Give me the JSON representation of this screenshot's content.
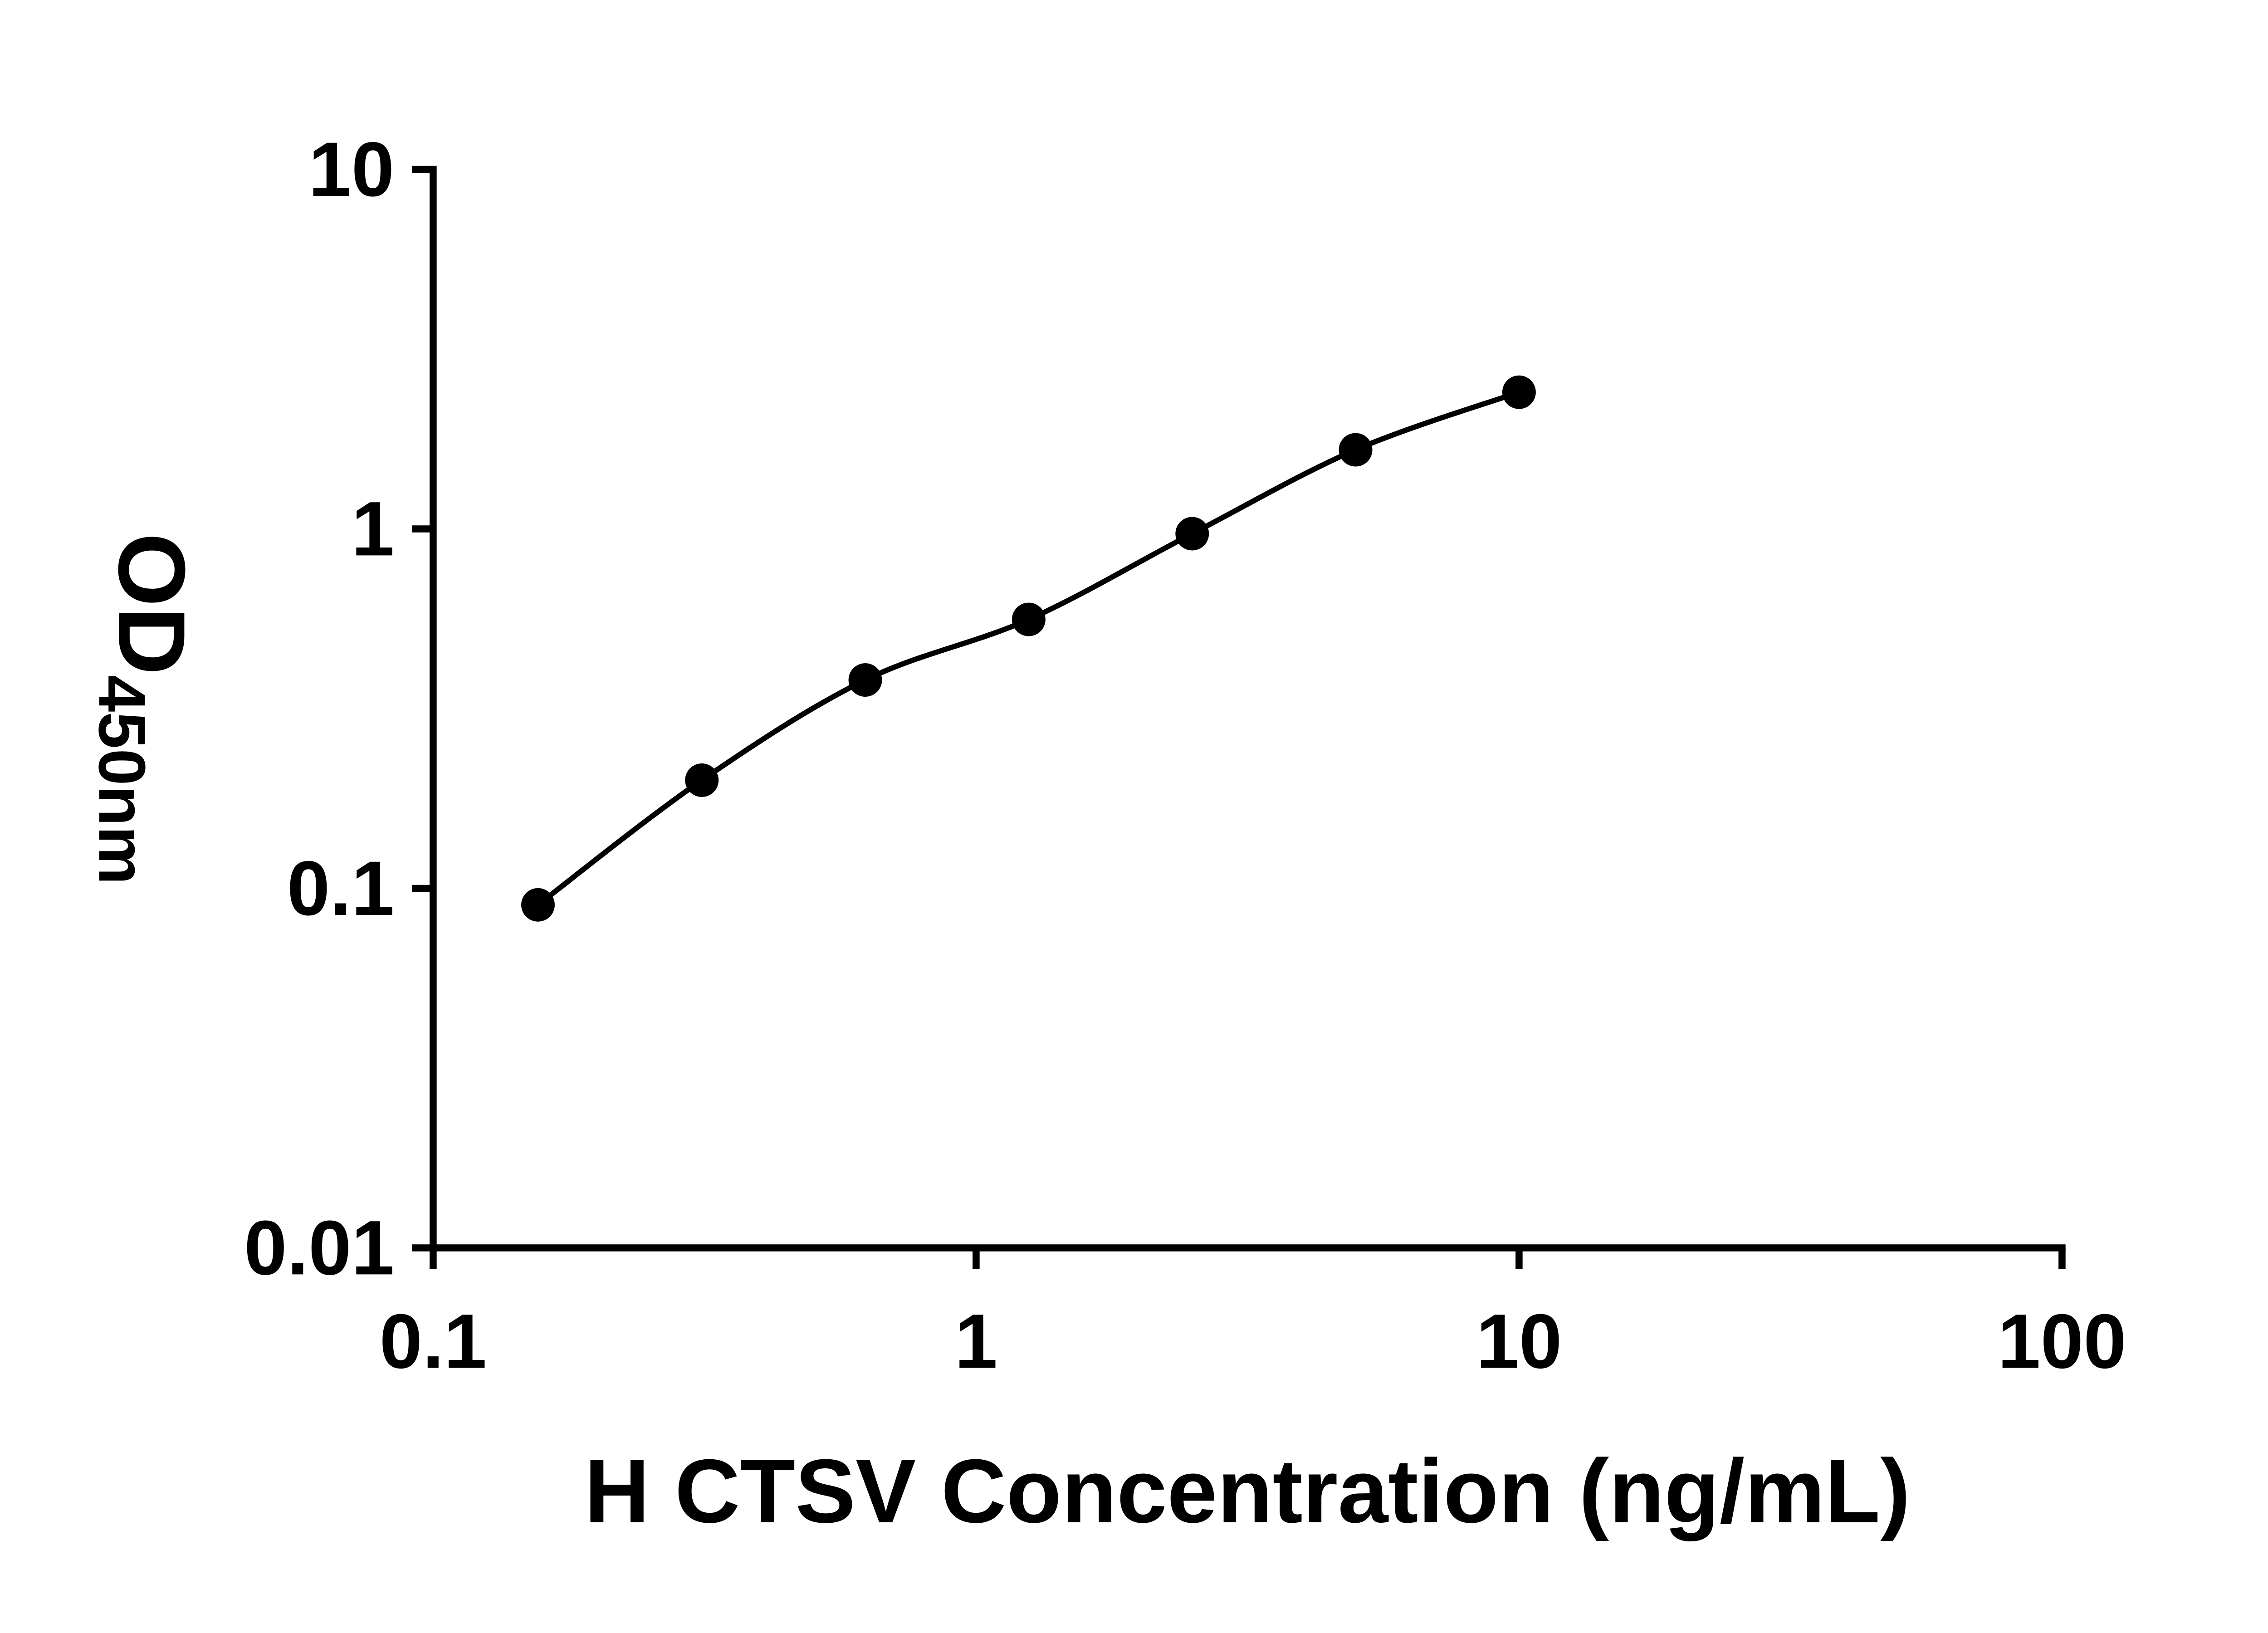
{
  "page": {
    "background": "#ffffff"
  },
  "chart_data": {
    "type": "scatter",
    "title": "",
    "xlabel": "H CTSV Concentration (ng/mL)",
    "ylabel": {
      "main": "OD",
      "subscript": "450nm"
    },
    "x_scale": "log",
    "y_scale": "log",
    "xlim": [
      0.1,
      100
    ],
    "ylim": [
      0.01,
      10
    ],
    "x_ticks": {
      "values": [
        0.1,
        1,
        10,
        100
      ],
      "labels": [
        "0.1",
        "1",
        "10",
        "100"
      ]
    },
    "y_ticks": {
      "values": [
        0.01,
        0.1,
        1,
        10
      ],
      "labels": [
        "0.01",
        "0.1",
        "1",
        "10"
      ]
    },
    "grid": false,
    "legend": false,
    "color": "#000000",
    "marker": "filled-circle",
    "fit": "smooth curve through points",
    "series": [
      {
        "points": [
          {
            "x": 0.156,
            "y": 0.09
          },
          {
            "x": 0.3125,
            "y": 0.2
          },
          {
            "x": 0.625,
            "y": 0.38
          },
          {
            "x": 1.25,
            "y": 0.56
          },
          {
            "x": 2.5,
            "y": 0.97
          },
          {
            "x": 5,
            "y": 1.66
          },
          {
            "x": 10,
            "y": 2.4
          }
        ]
      }
    ]
  }
}
